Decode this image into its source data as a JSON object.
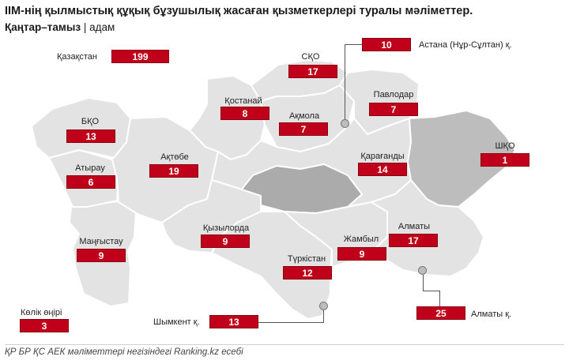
{
  "header": {
    "title": "ІІМ-нің қылмыстық құқық бұзушылық жасаған қызметкерлері туралы мәліметтер.",
    "period": "Қаңтар–тамыз",
    "separator": " | ",
    "unit": "адам"
  },
  "total": {
    "label": "Қазақстан",
    "value": "199"
  },
  "regions": {
    "sko": {
      "label": "СҚО",
      "value": "17"
    },
    "astana": {
      "label": "Астана (Нұр-Сұлтан) қ.",
      "value": "10"
    },
    "pavlodar": {
      "label": "Павлодар",
      "value": "7"
    },
    "kostanay": {
      "label": "Қостанай",
      "value": "8"
    },
    "akmola": {
      "label": "Ақмола",
      "value": "7"
    },
    "bko": {
      "label": "БҚО",
      "value": "13"
    },
    "shko": {
      "label": "ШҚО",
      "value": "1"
    },
    "aktobe": {
      "label": "Ақтөбе",
      "value": "19"
    },
    "atyrau": {
      "label": "Атырау",
      "value": "6"
    },
    "karagandy": {
      "label": "Қарағанды",
      "value": "14"
    },
    "mangystau": {
      "label": "Маңғыстау",
      "value": "9"
    },
    "kyzylorda": {
      "label": "Қызылорда",
      "value": "9"
    },
    "almaty": {
      "label": "Алматы",
      "value": "17"
    },
    "zhambyl": {
      "label": "Жамбыл",
      "value": "9"
    },
    "turkistan": {
      "label": "Түркістан",
      "value": "12"
    },
    "shymkent": {
      "label": "Шымкент қ.",
      "value": "13"
    },
    "almaty_city": {
      "label": "Алматы қ.",
      "value": "25"
    },
    "transport": {
      "label": "Көлік өңірі",
      "value": "3"
    }
  },
  "colors": {
    "accent": "#c0001a",
    "region_fill": "#e3e3e3",
    "region_dark": "#bdbdbd",
    "region_darker": "#ababab"
  },
  "footer": {
    "source": "ҚР БР ҚС АЕК мәліметтері негізіндегі Ranking.kz есебі"
  }
}
